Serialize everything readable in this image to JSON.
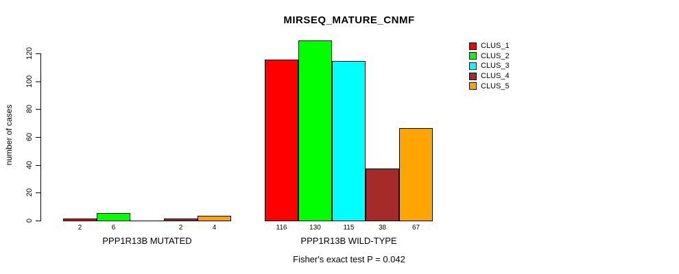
{
  "title": "MIRSEQ_MATURE_CNMF",
  "y_axis": {
    "label": "number of cases",
    "ticks": [
      0,
      20,
      40,
      60,
      80,
      100,
      120
    ]
  },
  "footer": "Fisher's exact test P = 0.042",
  "legend": {
    "position": "right",
    "items": [
      {
        "label": "CLUS_1",
        "color": "#ff0000"
      },
      {
        "label": "CLUS_2",
        "color": "#00ff00"
      },
      {
        "label": "CLUS_3",
        "color": "#00ffff"
      },
      {
        "label": "CLUS_4",
        "color": "#a52a2a"
      },
      {
        "label": "CLUS_5",
        "color": "#ffa500"
      }
    ]
  },
  "chart_data": {
    "type": "bar",
    "title": "MIRSEQ_MATURE_CNMF",
    "xlabel": "",
    "ylabel": "number of cases",
    "ylim": [
      0,
      130
    ],
    "yticks": [
      0,
      20,
      40,
      60,
      80,
      100,
      120
    ],
    "grid": false,
    "legend_position": "right",
    "series_labels": [
      "CLUS_1",
      "CLUS_2",
      "CLUS_3",
      "CLUS_4",
      "CLUS_5"
    ],
    "series_colors": [
      "#ff0000",
      "#00ff00",
      "#00ffff",
      "#a52a2a",
      "#ffa500"
    ],
    "groups": [
      {
        "label": "PPP1R13B MUTATED",
        "values": [
          2,
          6,
          0,
          2,
          4
        ]
      },
      {
        "label": "PPP1R13B WILD-TYPE",
        "values": [
          116,
          130,
          115,
          38,
          67
        ]
      }
    ],
    "bar_value_labels_shown": [
      "2",
      "6",
      "2",
      "4",
      "116",
      "130",
      "115",
      "38",
      "67"
    ],
    "annotation": "Fisher's exact test P = 0.042"
  }
}
